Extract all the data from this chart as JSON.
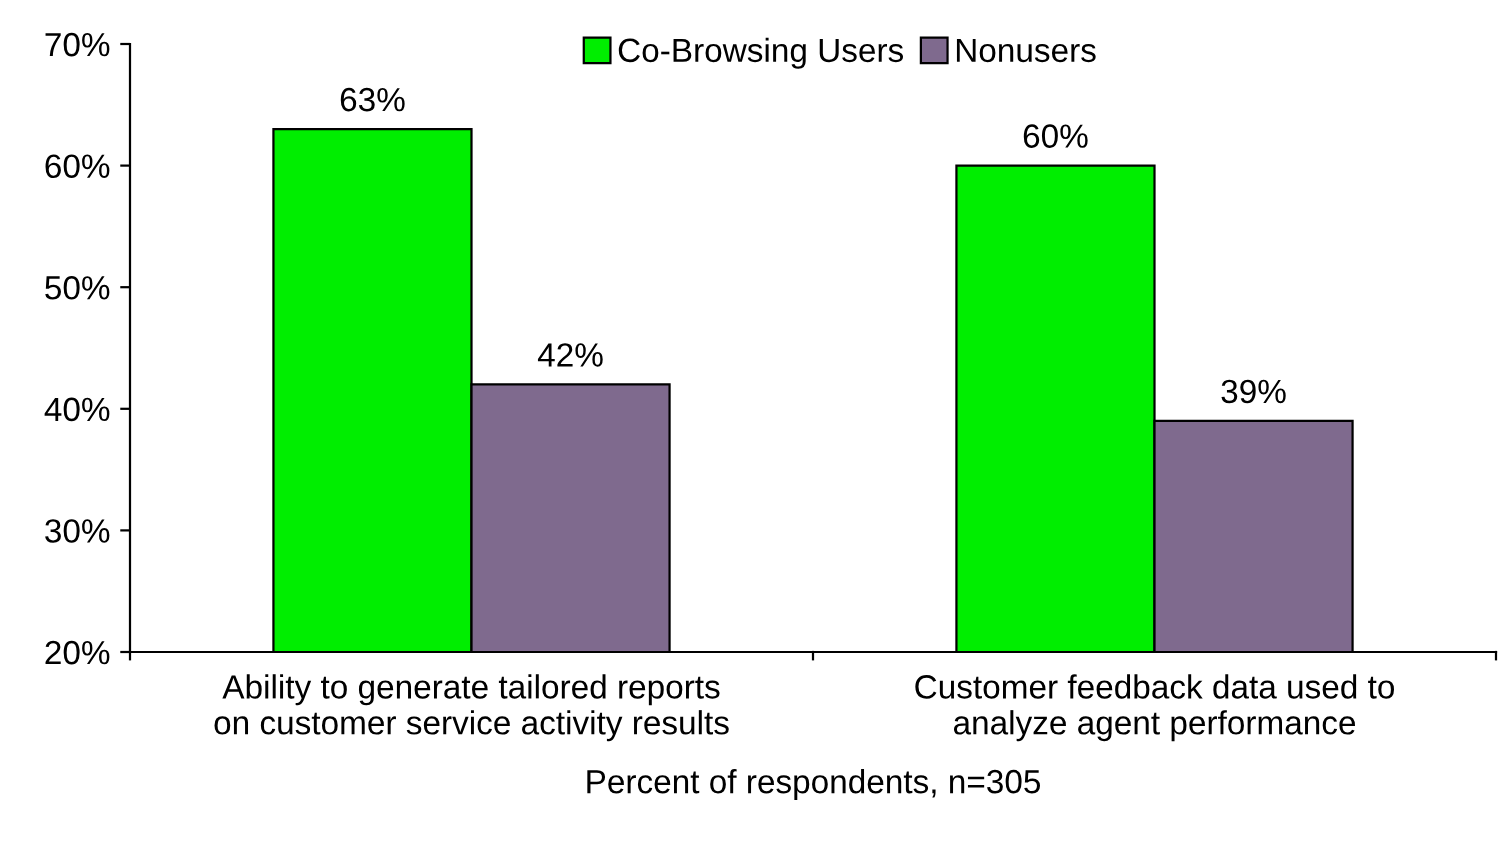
{
  "chart_data": {
    "type": "bar",
    "categories": [
      "Ability to generate tailored reports\non customer service activity results",
      "Customer feedback data used to\nanalyze agent performance"
    ],
    "series": [
      {
        "name": "Co-Browsing Users",
        "color": "#00ee00",
        "values": [
          63,
          60
        ],
        "value_labels": [
          "63%",
          "60%"
        ]
      },
      {
        "name": "Nonusers",
        "color": "#7f6a8e",
        "values": [
          42,
          39
        ],
        "value_labels": [
          "42%",
          "39%"
        ]
      }
    ],
    "xlabel": "Percent of respondents, n=305",
    "ylim": [
      20,
      70
    ],
    "yticks": [
      {
        "value": 20,
        "label": "20%"
      },
      {
        "value": 30,
        "label": "30%"
      },
      {
        "value": 40,
        "label": "40%"
      },
      {
        "value": 50,
        "label": "50%"
      },
      {
        "value": 60,
        "label": "60%"
      },
      {
        "value": 70,
        "label": "70%"
      }
    ],
    "legend": "top",
    "grid": false
  }
}
